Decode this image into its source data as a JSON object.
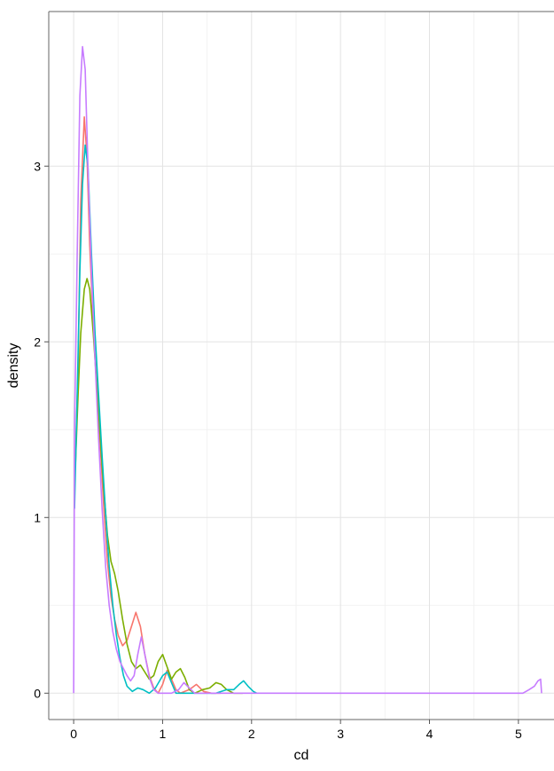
{
  "chart_data": {
    "type": "line",
    "title": "",
    "xlabel": "cd",
    "ylabel": "density",
    "xlim": [
      -0.28,
      5.4
    ],
    "ylim": [
      -0.15,
      3.88
    ],
    "x_ticks": [
      0,
      1,
      2,
      3,
      4,
      5
    ],
    "y_ticks": [
      0,
      1,
      2,
      3
    ],
    "x_tick_labels": [
      "0",
      "1",
      "2",
      "3",
      "4",
      "5"
    ],
    "y_tick_labels": [
      "0",
      "1",
      "2",
      "3"
    ],
    "grid": true,
    "legend": "none",
    "series": [
      {
        "color": "#F8766D",
        "points": [
          [
            0.02,
            1.35
          ],
          [
            0.05,
            1.85
          ],
          [
            0.08,
            2.8
          ],
          [
            0.12,
            3.28
          ],
          [
            0.15,
            3.05
          ],
          [
            0.18,
            2.55
          ],
          [
            0.22,
            2.1
          ],
          [
            0.26,
            1.75
          ],
          [
            0.3,
            1.4
          ],
          [
            0.34,
            1.05
          ],
          [
            0.38,
            0.75
          ],
          [
            0.42,
            0.55
          ],
          [
            0.46,
            0.42
          ],
          [
            0.5,
            0.33
          ],
          [
            0.55,
            0.27
          ],
          [
            0.6,
            0.3
          ],
          [
            0.65,
            0.38
          ],
          [
            0.7,
            0.46
          ],
          [
            0.75,
            0.38
          ],
          [
            0.8,
            0.22
          ],
          [
            0.85,
            0.1
          ],
          [
            0.9,
            0.03
          ],
          [
            0.95,
            0.0
          ],
          [
            1.0,
            0.05
          ],
          [
            1.05,
            0.13
          ],
          [
            1.1,
            0.08
          ],
          [
            1.15,
            0.02
          ],
          [
            1.2,
            0.0
          ],
          [
            1.3,
            0.02
          ],
          [
            1.38,
            0.05
          ],
          [
            1.46,
            0.01
          ],
          [
            1.55,
            0.0
          ],
          [
            1.65,
            0.0
          ]
        ]
      },
      {
        "color": "#7CAE00",
        "points": [
          [
            0.02,
            1.3
          ],
          [
            0.05,
            1.7
          ],
          [
            0.08,
            2.05
          ],
          [
            0.12,
            2.3
          ],
          [
            0.15,
            2.36
          ],
          [
            0.18,
            2.3
          ],
          [
            0.22,
            2.05
          ],
          [
            0.26,
            1.75
          ],
          [
            0.3,
            1.45
          ],
          [
            0.34,
            1.15
          ],
          [
            0.38,
            0.9
          ],
          [
            0.42,
            0.75
          ],
          [
            0.46,
            0.68
          ],
          [
            0.5,
            0.58
          ],
          [
            0.55,
            0.42
          ],
          [
            0.6,
            0.28
          ],
          [
            0.65,
            0.18
          ],
          [
            0.7,
            0.14
          ],
          [
            0.75,
            0.16
          ],
          [
            0.8,
            0.12
          ],
          [
            0.85,
            0.08
          ],
          [
            0.9,
            0.1
          ],
          [
            0.95,
            0.18
          ],
          [
            1.0,
            0.22
          ],
          [
            1.05,
            0.15
          ],
          [
            1.1,
            0.08
          ],
          [
            1.15,
            0.12
          ],
          [
            1.2,
            0.14
          ],
          [
            1.25,
            0.09
          ],
          [
            1.3,
            0.02
          ],
          [
            1.36,
            0.0
          ],
          [
            1.45,
            0.02
          ],
          [
            1.53,
            0.03
          ],
          [
            1.6,
            0.06
          ],
          [
            1.66,
            0.05
          ],
          [
            1.72,
            0.02
          ],
          [
            1.8,
            0.0
          ],
          [
            1.9,
            0.0
          ]
        ]
      },
      {
        "color": "#00BFC4",
        "points": [
          [
            0.01,
            1.05
          ],
          [
            0.04,
            1.7
          ],
          [
            0.07,
            2.4
          ],
          [
            0.1,
            2.9
          ],
          [
            0.13,
            3.12
          ],
          [
            0.16,
            3.0
          ],
          [
            0.2,
            2.5
          ],
          [
            0.24,
            2.05
          ],
          [
            0.28,
            1.7
          ],
          [
            0.32,
            1.35
          ],
          [
            0.36,
            1.02
          ],
          [
            0.4,
            0.72
          ],
          [
            0.44,
            0.5
          ],
          [
            0.48,
            0.33
          ],
          [
            0.52,
            0.2
          ],
          [
            0.56,
            0.1
          ],
          [
            0.6,
            0.04
          ],
          [
            0.66,
            0.01
          ],
          [
            0.72,
            0.03
          ],
          [
            0.78,
            0.02
          ],
          [
            0.85,
            0.0
          ],
          [
            0.92,
            0.03
          ],
          [
            1.0,
            0.1
          ],
          [
            1.05,
            0.12
          ],
          [
            1.1,
            0.06
          ],
          [
            1.15,
            0.0
          ],
          [
            1.3,
            0.0
          ],
          [
            1.5,
            0.0
          ],
          [
            1.6,
            0.0
          ],
          [
            1.72,
            0.02
          ],
          [
            1.8,
            0.02
          ],
          [
            1.86,
            0.05
          ],
          [
            1.91,
            0.07
          ],
          [
            1.96,
            0.04
          ],
          [
            2.02,
            0.01
          ],
          [
            2.06,
            0.0
          ]
        ]
      },
      {
        "color": "#C77CFF",
        "points": [
          [
            0.0,
            0.0
          ],
          [
            0.01,
            1.5
          ],
          [
            0.04,
            2.5
          ],
          [
            0.07,
            3.4
          ],
          [
            0.1,
            3.68
          ],
          [
            0.13,
            3.55
          ],
          [
            0.16,
            3.0
          ],
          [
            0.2,
            2.4
          ],
          [
            0.24,
            1.9
          ],
          [
            0.28,
            1.45
          ],
          [
            0.32,
            1.05
          ],
          [
            0.36,
            0.72
          ],
          [
            0.4,
            0.5
          ],
          [
            0.44,
            0.35
          ],
          [
            0.48,
            0.25
          ],
          [
            0.52,
            0.18
          ],
          [
            0.56,
            0.14
          ],
          [
            0.6,
            0.1
          ],
          [
            0.64,
            0.07
          ],
          [
            0.68,
            0.1
          ],
          [
            0.72,
            0.22
          ],
          [
            0.76,
            0.32
          ],
          [
            0.8,
            0.22
          ],
          [
            0.85,
            0.09
          ],
          [
            0.9,
            0.02
          ],
          [
            0.95,
            0.0
          ],
          [
            1.0,
            0.0
          ],
          [
            1.1,
            0.0
          ],
          [
            1.18,
            0.02
          ],
          [
            1.24,
            0.06
          ],
          [
            1.3,
            0.03
          ],
          [
            1.36,
            0.0
          ],
          [
            1.5,
            0.0
          ],
          [
            2.0,
            0.0
          ],
          [
            3.0,
            0.0
          ],
          [
            4.0,
            0.0
          ],
          [
            5.05,
            0.0
          ],
          [
            5.12,
            0.02
          ],
          [
            5.18,
            0.04
          ],
          [
            5.22,
            0.07
          ],
          [
            5.25,
            0.08
          ],
          [
            5.26,
            0.0
          ]
        ]
      }
    ]
  }
}
